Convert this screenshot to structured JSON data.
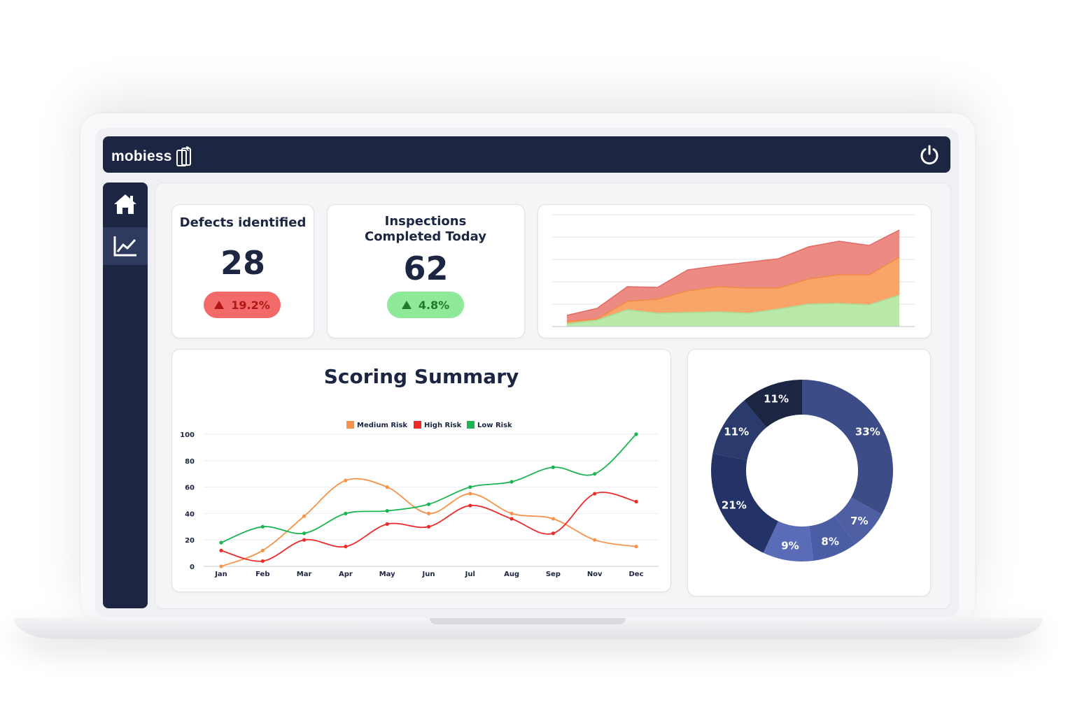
{
  "app": {
    "brand": "mobiess",
    "colors": {
      "navy": "#1c2541",
      "red": "#f36a6a",
      "green": "#8eea99"
    }
  },
  "header": {
    "power_icon": "power-icon"
  },
  "sidebar": {
    "items": [
      {
        "icon": "home-icon",
        "active": false
      },
      {
        "icon": "chart-line-icon",
        "active": true
      }
    ]
  },
  "kpis": [
    {
      "title": "Defects identified",
      "value": "28",
      "change": "19.2%",
      "direction": "up",
      "color": "red"
    },
    {
      "title": "Inspections Completed Today",
      "value": "62",
      "change": "4.8%",
      "direction": "up",
      "color": "green"
    }
  ],
  "chart_data": [
    {
      "type": "area",
      "stacked": true,
      "title": "",
      "x": [
        1,
        2,
        3,
        4,
        5,
        6,
        7,
        8,
        9,
        10,
        11,
        12
      ],
      "series": [
        {
          "name": "green",
          "color": "#b9e8a8",
          "values": [
            4,
            9,
            24,
            19,
            20,
            21,
            19,
            25,
            32,
            33,
            31,
            45
          ]
        },
        {
          "name": "orange",
          "color": "#f9a56a",
          "values": [
            3,
            2,
            12,
            20,
            31,
            36,
            36,
            30,
            36,
            41,
            43,
            54
          ]
        },
        {
          "name": "red",
          "color": "#ec8a84",
          "values": [
            9,
            15,
            21,
            17,
            30,
            30,
            37,
            42,
            46,
            48,
            42,
            39
          ]
        }
      ],
      "ylim": [
        0,
        160
      ],
      "grid": true
    },
    {
      "type": "line",
      "title": "Scoring Summary",
      "categories": [
        "Jan",
        "Feb",
        "Mar",
        "Apr",
        "May",
        "Jun",
        "Jul",
        "Aug",
        "Sep",
        "Nov",
        "Dec"
      ],
      "series": [
        {
          "name": "Medium Risk",
          "color": "#f7934a",
          "values": [
            0,
            12,
            38,
            65,
            60,
            40,
            55,
            40,
            36,
            20,
            15
          ]
        },
        {
          "name": "High Risk",
          "color": "#ee2b2b",
          "values": [
            12,
            4,
            20,
            15,
            32,
            30,
            46,
            36,
            25,
            55,
            49
          ]
        },
        {
          "name": "Low Risk",
          "color": "#1ab552",
          "values": [
            18,
            30,
            25,
            40,
            42,
            47,
            60,
            64,
            75,
            70,
            100
          ]
        }
      ],
      "yticks": [
        "0",
        "20",
        "40",
        "60",
        "80",
        "100"
      ],
      "ylim": [
        0,
        100
      ],
      "legend": "top-center"
    },
    {
      "type": "pie",
      "donut": true,
      "slices": [
        {
          "label": "33%",
          "value": 33,
          "color": "#3b4c87"
        },
        {
          "label": "7%",
          "value": 7,
          "color": "#4e5fa3"
        },
        {
          "label": "8%",
          "value": 8,
          "color": "#4a5da5"
        },
        {
          "label": "9%",
          "value": 9,
          "color": "#5a6cb8"
        },
        {
          "label": "21%",
          "value": 21,
          "color": "#243367"
        },
        {
          "label": "11%",
          "value": 11,
          "color": "#2b3a6d"
        },
        {
          "label": "11%",
          "value": 11,
          "color": "#1c2541"
        }
      ]
    }
  ]
}
